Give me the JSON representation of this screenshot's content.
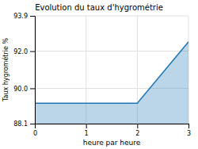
{
  "chart_data": {
    "type": "area",
    "title": "Evolution du taux d'hygrométrie",
    "xlabel": "heure par heure",
    "ylabel": "Taux hygrométrie %",
    "x": [
      0,
      2,
      3
    ],
    "values": [
      89.2,
      89.2,
      92.5
    ],
    "xlim": [
      0,
      3
    ],
    "ylim": [
      88.1,
      93.9
    ],
    "xticks": [
      0,
      1,
      2,
      3
    ],
    "yticks": [
      88.1,
      {
        "value": 90.0,
        "label": "90.0"
      },
      {
        "value": 92.0,
        "label": "92.0"
      },
      93.9
    ],
    "grid": true
  }
}
